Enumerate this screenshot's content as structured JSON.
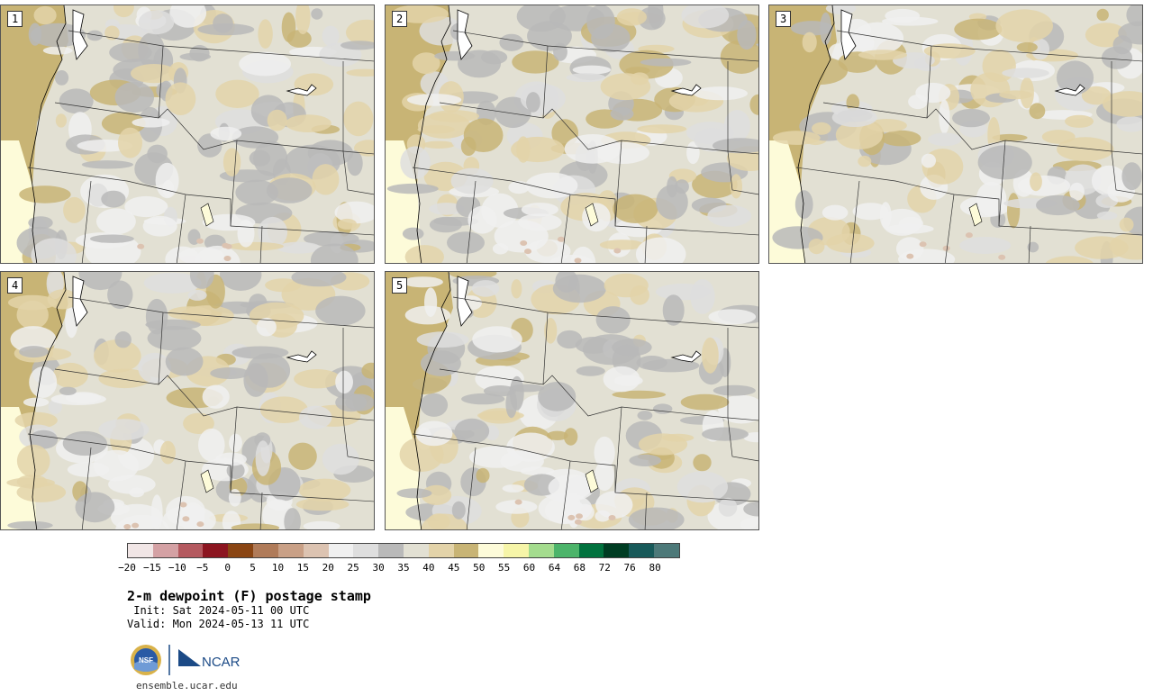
{
  "panels": [
    {
      "label": "1"
    },
    {
      "label": "2"
    },
    {
      "label": "3"
    },
    {
      "label": "4"
    },
    {
      "label": "5"
    }
  ],
  "colorbar": {
    "colors": [
      "#f1e6e6",
      "#d4a1a4",
      "#b4595f",
      "#8c1520",
      "#8a4513",
      "#b07b59",
      "#c9a086",
      "#dcc3b1",
      "#f0f0f0",
      "#dedede",
      "#b9b9b9",
      "#e2e0d3",
      "#e3d3a9",
      "#c8b475",
      "#fdfbd9",
      "#f6f5a8",
      "#a4dc8e",
      "#4cb46a",
      "#01723e",
      "#003d23",
      "#185a5a",
      "#4d7979"
    ],
    "ticks": [
      "−20",
      "−15",
      "−10",
      "−5",
      "0",
      "5",
      "10",
      "15",
      "20",
      "25",
      "30",
      "35",
      "40",
      "45",
      "50",
      "55",
      "60",
      "64",
      "68",
      "72",
      "76",
      "80"
    ]
  },
  "title": "2-m dewpoint (F) postage stamp",
  "init": " Init: Sat 2024-05-11 00 UTC",
  "valid": "Valid: Mon 2024-05-13 11 UTC",
  "logo": {
    "nsf": "NSF",
    "ncar": "NCAR"
  },
  "url": "ensemble.ucar.edu"
}
